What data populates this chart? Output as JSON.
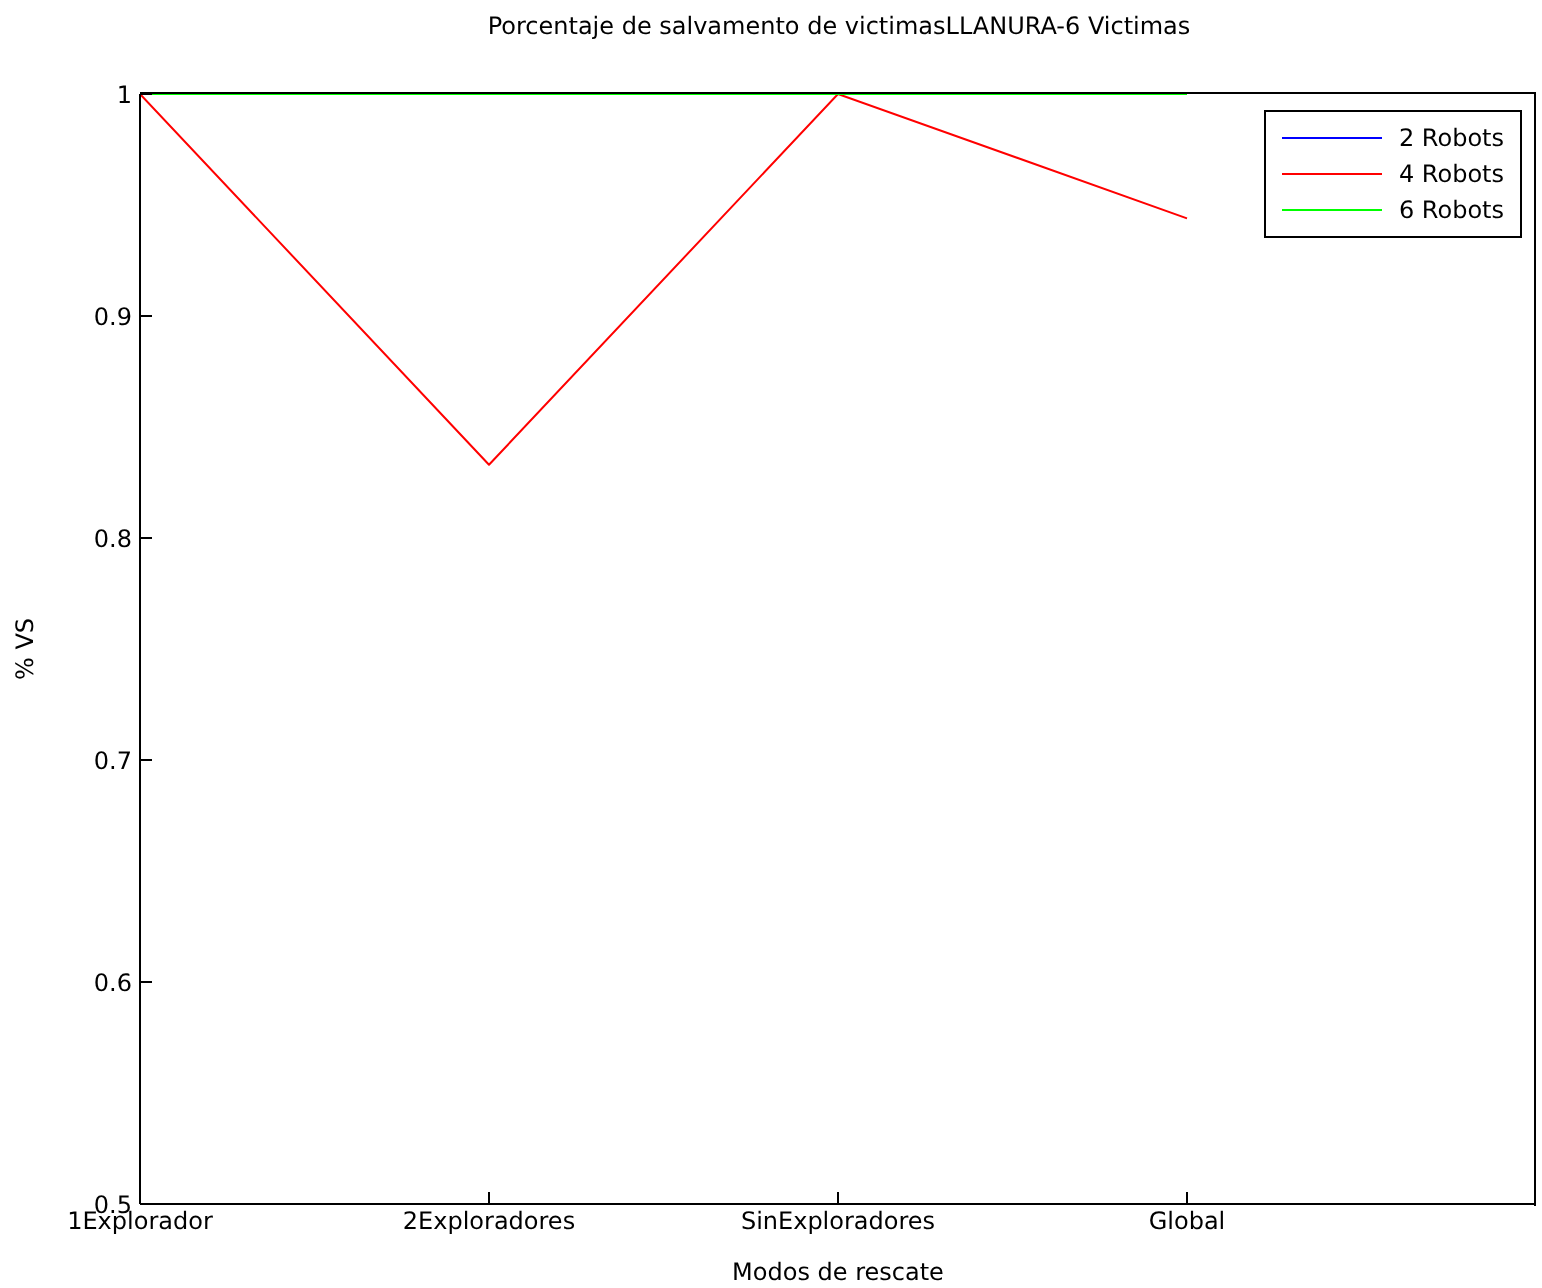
{
  "chart_data": {
    "type": "line",
    "title": "Porcentaje de salvamento de victimasLLANURA-6 Victimas",
    "xlabel": "Modos de rescate",
    "ylabel": "% VS",
    "x": [
      1,
      2,
      3,
      4
    ],
    "xlim": [
      1,
      5
    ],
    "xticks": [
      {
        "value": 1,
        "label": "1Explorador"
      },
      {
        "value": 2,
        "label": "2Exploradores"
      },
      {
        "value": 3,
        "label": "SinExploradores"
      },
      {
        "value": 4,
        "label": "Global"
      }
    ],
    "ylim": [
      0.5,
      1
    ],
    "yticks": [
      0.5,
      0.6,
      0.7,
      0.8,
      0.9,
      1
    ],
    "series": [
      {
        "name": "2 Robots",
        "color": "#0000ff",
        "values": [
          null,
          null,
          null,
          null
        ]
      },
      {
        "name": "4 Robots",
        "color": "#ff0000",
        "values": [
          1,
          0.833,
          1,
          0.944
        ]
      },
      {
        "name": "6 Robots",
        "color": "#00ff00",
        "values": [
          1,
          1,
          1,
          1
        ]
      }
    ],
    "legend": "top right",
    "marker": "none",
    "line_style": "solid"
  }
}
